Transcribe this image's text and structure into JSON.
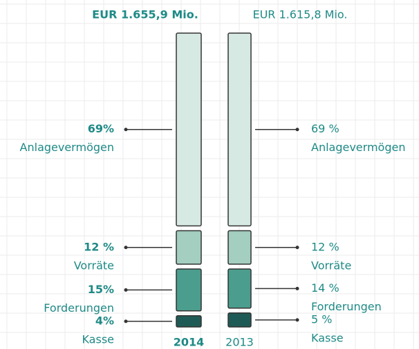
{
  "chart_data": {
    "type": "bar",
    "stacked": true,
    "categories": [
      "2014",
      "2013"
    ],
    "totals": [
      "EUR 1.655,9 Mio.",
      "EUR 1.615,8 Mio."
    ],
    "series": [
      {
        "name": "Anlagevermögen",
        "color": "#d6e9e3",
        "values": [
          69,
          69
        ],
        "value_labels": [
          "69%",
          "69 %"
        ]
      },
      {
        "name": "Vorräte",
        "color": "#a3cec0",
        "values": [
          12,
          12
        ],
        "value_labels": [
          "12 %",
          "12 %"
        ]
      },
      {
        "name": "Forderungen",
        "color": "#4b9d8d",
        "values": [
          15,
          14
        ],
        "value_labels": [
          "15%",
          "14 %"
        ]
      },
      {
        "name": "Kasse",
        "color": "#1f5b56",
        "values": [
          4,
          5
        ],
        "value_labels": [
          "4%",
          "5 %"
        ]
      }
    ],
    "ylim": [
      0,
      100
    ]
  }
}
